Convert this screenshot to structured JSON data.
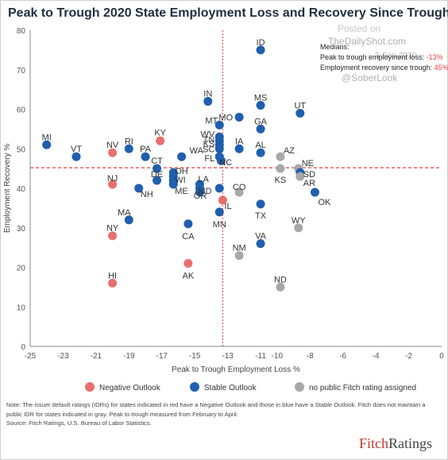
{
  "title": "Peak to Trough 2020 State Employment Loss and Recovery Since Trough",
  "watermark": {
    "posted_on": "Posted on",
    "site": "TheDailyShot.com",
    "date": "3-Sep-2020",
    "handle": "@SoberLook"
  },
  "medians": {
    "heading": "Medians:",
    "loss_label": "Peak to trough employment loss:",
    "loss_value": "-13%",
    "recovery_label": "Employment recovery since trough:",
    "recovery_value": "45%",
    "value_color": "#e0413e"
  },
  "legend": [
    {
      "label": "Negative Outlook",
      "color": "#e8706f"
    },
    {
      "label": "Stable Outlook",
      "color": "#1f5fae"
    },
    {
      "label": "no public Fitch rating assigned",
      "color": "#a8a8a8"
    }
  ],
  "notes": {
    "note1": "Note: The issuer default ratings (IDRs) for states indicated in red have a Negative Outlook and those in blue have a Stable Outlook. Fitch does not maintain a",
    "note2": "public IDR for states indicated in gray. Peak to trough measured from February to April.",
    "source": "Source: Fitch Ratings, U.S. Bureau of Labor Statistics."
  },
  "brand": {
    "part1": "Fitch",
    "part2": "Ratings"
  },
  "chart_data": {
    "type": "scatter",
    "xlabel": "Peak to Trough Employment Loss %",
    "ylabel": "Employment Recovery %",
    "xlim": [
      -25,
      0
    ],
    "ylim": [
      0,
      80
    ],
    "xticks": [
      -25,
      -23,
      -21,
      -19,
      -17,
      -15,
      -13,
      -11,
      -10,
      -8,
      -6,
      -4,
      -2,
      0
    ],
    "yticks": [
      0,
      10,
      20,
      30,
      40,
      50,
      60,
      70,
      80
    ],
    "median_lines": {
      "x": -13.3,
      "y": 45.2
    },
    "grid": false,
    "legend_position": "bottom",
    "outlook_colors": {
      "negative": "#e8706f",
      "stable": "#1f5fae",
      "none": "#a8a8a8"
    },
    "points": [
      {
        "label": "ID",
        "x": -11.0,
        "y": 75,
        "outlook": "stable"
      },
      {
        "label": "IN",
        "x": -14.2,
        "y": 62,
        "outlook": "stable"
      },
      {
        "label": "MS",
        "x": -11.0,
        "y": 61,
        "outlook": "stable"
      },
      {
        "label": "MO",
        "x": -12.3,
        "y": 58,
        "outlook": "stable"
      },
      {
        "label": "UT",
        "x": -8.6,
        "y": 59,
        "outlook": "stable"
      },
      {
        "label": "MT",
        "x": -13.5,
        "y": 56,
        "outlook": "stable"
      },
      {
        "label": "GA",
        "x": -11.0,
        "y": 55,
        "outlook": "stable"
      },
      {
        "label": "WV",
        "x": -13.5,
        "y": 53,
        "outlook": "stable"
      },
      {
        "label": "TN",
        "x": -13.5,
        "y": 52,
        "outlook": "stable"
      },
      {
        "label": "KS",
        "x": -13.5,
        "y": 51,
        "outlook": "stable"
      },
      {
        "label": "SC",
        "x": -13.5,
        "y": 50,
        "outlook": "stable"
      },
      {
        "label": "IA",
        "x": -12.3,
        "y": 50,
        "outlook": "stable"
      },
      {
        "label": "AL",
        "x": -11.0,
        "y": 49,
        "outlook": "stable"
      },
      {
        "label": "FL",
        "x": -13.5,
        "y": 48,
        "outlook": "stable"
      },
      {
        "label": "NC",
        "x": -13.4,
        "y": 47,
        "outlook": "stable"
      },
      {
        "label": "AZ",
        "x": -9.8,
        "y": 48,
        "outlook": "none"
      },
      {
        "label": "NE",
        "x": -8.7,
        "y": 45,
        "outlook": "none"
      },
      {
        "label": "SD",
        "x": -8.6,
        "y": 44,
        "outlook": "stable"
      },
      {
        "label": "KS",
        "x": -9.8,
        "y": 45,
        "outlook": "none"
      },
      {
        "label": "AR",
        "x": -8.6,
        "y": 43,
        "outlook": "none"
      },
      {
        "label": "OK",
        "x": -7.7,
        "y": 39,
        "outlook": "stable"
      },
      {
        "label": "MI",
        "x": -24.0,
        "y": 51,
        "outlook": "stable"
      },
      {
        "label": "VT",
        "x": -22.2,
        "y": 48,
        "outlook": "stable"
      },
      {
        "label": "NV",
        "x": -20.0,
        "y": 49,
        "outlook": "negative"
      },
      {
        "label": "RI",
        "x": -19.0,
        "y": 50,
        "outlook": "stable"
      },
      {
        "label": "PA",
        "x": -18.0,
        "y": 48,
        "outlook": "stable"
      },
      {
        "label": "KY",
        "x": -17.1,
        "y": 52,
        "outlook": "negative"
      },
      {
        "label": "WA",
        "x": -15.8,
        "y": 48,
        "outlook": "stable"
      },
      {
        "label": "CT",
        "x": -17.3,
        "y": 45,
        "outlook": "stable"
      },
      {
        "label": "OH",
        "x": -16.3,
        "y": 44,
        "outlook": "stable"
      },
      {
        "label": "WI",
        "x": -16.3,
        "y": 43,
        "outlook": "stable"
      },
      {
        "label": "",
        "x": -16.3,
        "y": 42,
        "outlook": "stable"
      },
      {
        "label": "DE",
        "x": -17.3,
        "y": 42,
        "outlook": "stable"
      },
      {
        "label": "ME",
        "x": -16.3,
        "y": 41,
        "outlook": "stable"
      },
      {
        "label": "NH",
        "x": -18.4,
        "y": 40,
        "outlook": "stable"
      },
      {
        "label": "NJ",
        "x": -20.0,
        "y": 41,
        "outlook": "negative"
      },
      {
        "label": "LA",
        "x": -14.7,
        "y": 41,
        "outlook": "stable"
      },
      {
        "label": "MD",
        "x": -14.7,
        "y": 40,
        "outlook": "stable"
      },
      {
        "label": "",
        "x": -14.7,
        "y": 39,
        "outlook": "stable"
      },
      {
        "label": "CO",
        "x": -12.3,
        "y": 39,
        "outlook": "none"
      },
      {
        "label": "OR",
        "x": -13.5,
        "y": 40,
        "outlook": "stable"
      },
      {
        "label": "IL",
        "x": -13.3,
        "y": 37,
        "outlook": "negative"
      },
      {
        "label": "TX",
        "x": -11.0,
        "y": 36,
        "outlook": "stable"
      },
      {
        "label": "MN",
        "x": -13.5,
        "y": 34,
        "outlook": "stable"
      },
      {
        "label": "MA",
        "x": -19.0,
        "y": 32,
        "outlook": "stable"
      },
      {
        "label": "CA",
        "x": -15.4,
        "y": 31,
        "outlook": "stable"
      },
      {
        "label": "WY",
        "x": -8.7,
        "y": 30,
        "outlook": "none"
      },
      {
        "label": "NY",
        "x": -20.0,
        "y": 28,
        "outlook": "negative"
      },
      {
        "label": "VA",
        "x": -11.0,
        "y": 26,
        "outlook": "stable"
      },
      {
        "label": "NM",
        "x": -12.3,
        "y": 23,
        "outlook": "none"
      },
      {
        "label": "AK",
        "x": -15.4,
        "y": 21,
        "outlook": "negative"
      },
      {
        "label": "HI",
        "x": -20.0,
        "y": 16,
        "outlook": "negative"
      },
      {
        "label": "ND",
        "x": -9.8,
        "y": 15,
        "outlook": "none"
      }
    ]
  }
}
